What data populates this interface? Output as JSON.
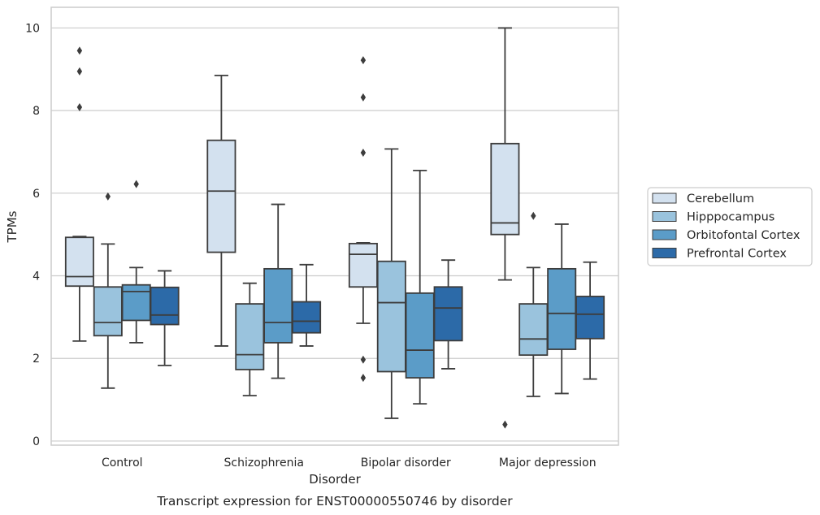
{
  "caption": "Transcript expression for ENST00000550746 by disorder",
  "chart_data": {
    "type": "box",
    "xlabel": "Disorder",
    "ylabel": "TPMs",
    "ylim": [
      -0.1,
      10.5
    ],
    "yticks": [
      0,
      2,
      4,
      6,
      8,
      10
    ],
    "grid": "horizontal",
    "legend_position": "right",
    "categories": [
      "Control",
      "Schizophrenia",
      "Bipolar disorder",
      "Major depression"
    ],
    "series": [
      {
        "name": "Cerebellum",
        "color": "#d3e1ef",
        "boxes": [
          {
            "category": "Control",
            "whisker_low": 2.42,
            "q1": 3.75,
            "median": 3.98,
            "q3": 4.93,
            "whisker_high": 4.95,
            "outliers": [
              8.08,
              8.95,
              9.45
            ]
          },
          {
            "category": "Schizophrenia",
            "whisker_low": 2.3,
            "q1": 4.57,
            "median": 6.05,
            "q3": 7.28,
            "whisker_high": 8.85,
            "outliers": []
          },
          {
            "category": "Bipolar disorder",
            "whisker_low": 2.85,
            "q1": 3.73,
            "median": 4.52,
            "q3": 4.78,
            "whisker_high": 4.8,
            "outliers": [
              1.53,
              1.97,
              6.98,
              8.32,
              9.22
            ]
          },
          {
            "category": "Major depression",
            "whisker_low": 3.9,
            "q1": 5.0,
            "median": 5.28,
            "q3": 7.2,
            "whisker_high": 10.0,
            "outliers": [
              0.4
            ]
          }
        ]
      },
      {
        "name": "Hipppocampus",
        "color": "#9ac3dd",
        "boxes": [
          {
            "category": "Control",
            "whisker_low": 1.28,
            "q1": 2.55,
            "median": 2.87,
            "q3": 3.73,
            "whisker_high": 4.77,
            "outliers": [
              5.92
            ]
          },
          {
            "category": "Schizophrenia",
            "whisker_low": 1.1,
            "q1": 1.73,
            "median": 2.09,
            "q3": 3.32,
            "whisker_high": 3.82,
            "outliers": []
          },
          {
            "category": "Bipolar disorder",
            "whisker_low": 0.55,
            "q1": 1.68,
            "median": 3.35,
            "q3": 4.35,
            "whisker_high": 7.07,
            "outliers": []
          },
          {
            "category": "Major depression",
            "whisker_low": 1.08,
            "q1": 2.08,
            "median": 2.47,
            "q3": 3.32,
            "whisker_high": 4.2,
            "outliers": [
              5.45
            ]
          }
        ]
      },
      {
        "name": "Orbitofontal Cortex",
        "color": "#5b9cc8",
        "boxes": [
          {
            "category": "Control",
            "whisker_low": 2.38,
            "q1": 2.92,
            "median": 3.62,
            "q3": 3.78,
            "whisker_high": 4.2,
            "outliers": [
              6.22
            ]
          },
          {
            "category": "Schizophrenia",
            "whisker_low": 1.52,
            "q1": 2.38,
            "median": 2.87,
            "q3": 4.17,
            "whisker_high": 5.73,
            "outliers": []
          },
          {
            "category": "Bipolar disorder",
            "whisker_low": 0.9,
            "q1": 1.53,
            "median": 2.2,
            "q3": 3.58,
            "whisker_high": 6.55,
            "outliers": []
          },
          {
            "category": "Major depression",
            "whisker_low": 1.15,
            "q1": 2.22,
            "median": 3.09,
            "q3": 4.17,
            "whisker_high": 5.25,
            "outliers": []
          }
        ]
      },
      {
        "name": "Prefrontal Cortex",
        "color": "#2c6aa8",
        "boxes": [
          {
            "category": "Control",
            "whisker_low": 1.83,
            "q1": 2.82,
            "median": 3.05,
            "q3": 3.72,
            "whisker_high": 4.12,
            "outliers": []
          },
          {
            "category": "Schizophrenia",
            "whisker_low": 2.3,
            "q1": 2.62,
            "median": 2.9,
            "q3": 3.37,
            "whisker_high": 4.27,
            "outliers": []
          },
          {
            "category": "Bipolar disorder",
            "whisker_low": 1.75,
            "q1": 2.43,
            "median": 3.22,
            "q3": 3.73,
            "whisker_high": 4.38,
            "outliers": []
          },
          {
            "category": "Major depression",
            "whisker_low": 1.5,
            "q1": 2.48,
            "median": 3.07,
            "q3": 3.5,
            "whisker_high": 4.33,
            "outliers": []
          }
        ]
      }
    ]
  }
}
